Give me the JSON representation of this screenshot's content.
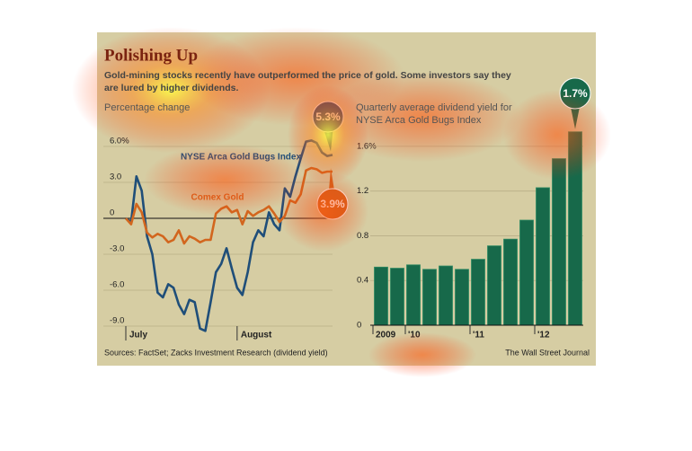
{
  "header": {
    "title": "Polishing Up",
    "subtitle": [
      "Gold-mining stocks recently have outperformed the price of gold. Some investors say they",
      "are lured by higher dividends."
    ]
  },
  "footer": {
    "source": "Sources: FactSet; Zacks Investment Research (dividend yield)",
    "credit": "The Wall Street Journal"
  },
  "chart_data": [
    {
      "type": "line",
      "ylabel": "Percentage change",
      "categories": [
        "July",
        null,
        null,
        null,
        null,
        null,
        null,
        null,
        null,
        null,
        null,
        null,
        null,
        null,
        null,
        null,
        null,
        null,
        null,
        null,
        null,
        "August",
        null,
        null,
        null,
        null,
        null,
        null,
        null,
        null,
        null,
        null,
        null,
        null,
        null,
        null,
        null,
        null,
        null,
        null
      ],
      "series": [
        {
          "name": "NYSE Arca Gold Bugs Index",
          "color": "#1f4e79",
          "values": [
            0,
            -0.3,
            3.5,
            2.3,
            -1.5,
            -3,
            -6.2,
            -6.6,
            -5.5,
            -5.8,
            -7.2,
            -8,
            -6.8,
            -7,
            -9.2,
            -9.4,
            -7,
            -4.5,
            -3.8,
            -2.5,
            -4.2,
            -5.8,
            -6.4,
            -4.5,
            -2,
            -1,
            -1.5,
            0.5,
            -0.5,
            -1,
            2.5,
            1.8,
            3.5,
            5,
            6.4,
            6.5,
            6.3,
            5.5,
            5.2,
            5.3
          ],
          "value_labels": [
            null,
            null,
            null,
            null,
            null,
            null,
            null,
            null,
            null,
            null,
            null,
            null,
            null,
            null,
            null,
            null,
            null,
            null,
            null,
            null,
            null,
            null,
            null,
            null,
            null,
            null,
            null,
            null,
            null,
            null,
            null,
            null,
            null,
            null,
            null,
            null,
            null,
            null,
            null,
            "5.3%"
          ]
        },
        {
          "name": "Comex Gold",
          "color": "#d2661e",
          "values": [
            0,
            -0.5,
            1.2,
            0.5,
            -1.2,
            -1.6,
            -1.3,
            -1.5,
            -2,
            -1.8,
            -1,
            -2.1,
            -1.5,
            -1.7,
            -2,
            -1.8,
            -1.8,
            0.4,
            0.8,
            1,
            0.5,
            0.7,
            -0.5,
            0.6,
            0.2,
            0.5,
            0.7,
            1,
            0.4,
            -0.3,
            0.2,
            1.5,
            1.3,
            2,
            4,
            4.2,
            4.1,
            3.8,
            3.9,
            3.9
          ],
          "value_labels": [
            null,
            null,
            null,
            null,
            null,
            null,
            null,
            null,
            null,
            null,
            null,
            null,
            null,
            null,
            null,
            null,
            null,
            null,
            null,
            null,
            null,
            null,
            null,
            null,
            null,
            null,
            null,
            null,
            null,
            null,
            null,
            null,
            null,
            null,
            null,
            null,
            null,
            null,
            null,
            "3.9%"
          ]
        }
      ],
      "ylim": [
        -9.6,
        7.2
      ],
      "yticks": [
        {
          "value": 6,
          "label": "6.0%"
        },
        {
          "value": 3,
          "label": "3.0"
        },
        0,
        {
          "value": -3,
          "label": "-3.0"
        },
        {
          "value": -6,
          "label": "-6.0"
        },
        {
          "value": -9,
          "label": "-9.0"
        }
      ],
      "grid": true
    },
    {
      "type": "bar",
      "ylabel": [
        "Quarterly average dividend yield for",
        "NYSE Arca Gold Bugs Index"
      ],
      "categories": [
        "2009",
        null,
        "'10",
        null,
        null,
        null,
        "'11",
        null,
        null,
        null,
        "'12",
        null,
        null
      ],
      "values": [
        0.52,
        0.51,
        0.54,
        0.5,
        0.53,
        0.5,
        0.59,
        0.71,
        0.77,
        0.94,
        1.23,
        1.49,
        1.73
      ],
      "value_labels": [
        null,
        null,
        null,
        null,
        null,
        null,
        null,
        null,
        null,
        null,
        null,
        null,
        "1.7%"
      ],
      "color": "#17694a",
      "ylim": [
        0,
        1.8
      ],
      "yticks": [
        0,
        0.4,
        0.8,
        1.2,
        {
          "value": 1.6,
          "label": "1.6%"
        }
      ],
      "grid": true
    }
  ]
}
